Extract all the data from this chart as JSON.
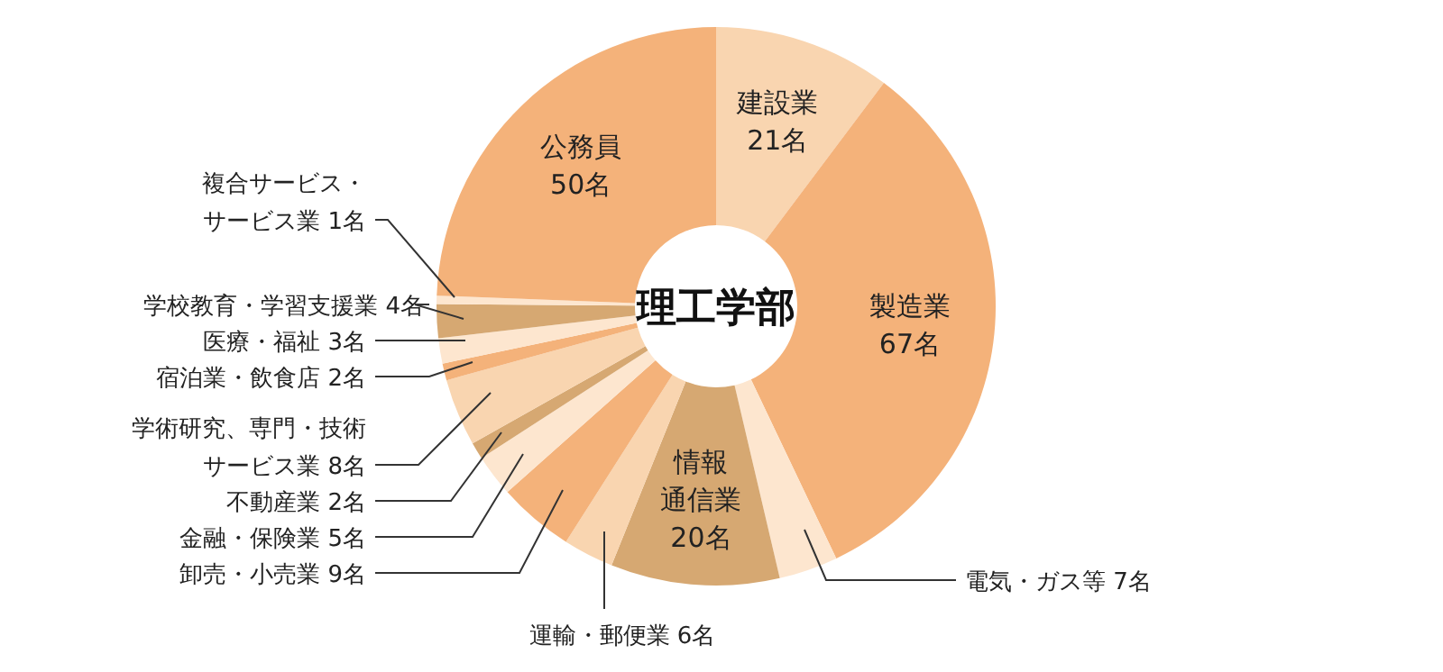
{
  "chart_data": {
    "type": "donut",
    "title": "理工学部",
    "categories": [
      "建設業",
      "製造業",
      "電気・ガス等",
      "情報通信業",
      "運輸・郵便業",
      "卸売・小売業",
      "金融・保険業",
      "不動産業",
      "学術研究、専門・技術サービス業",
      "宿泊業・飲食店",
      "医療・福祉",
      "学校教育・学習支援業",
      "複合サービス・サービス業",
      "公務員"
    ],
    "values": [
      21,
      67,
      7,
      20,
      6,
      9,
      5,
      2,
      8,
      2,
      3,
      4,
      1,
      50
    ],
    "value_labels": [
      "21名",
      "67名",
      "7名",
      "20名",
      "6名",
      "9名",
      "5名",
      "2名",
      "8名",
      "2名",
      "3名",
      "4名",
      "1名",
      "50名"
    ],
    "colors": [
      "#f9d5b0",
      "#f4b27a",
      "#fde6cf",
      "#d6a872",
      "#f9d5b0",
      "#f4b27a",
      "#fde6cf",
      "#d6a872",
      "#f9d5b0",
      "#f4b27a",
      "#fde6cf",
      "#d6a872",
      "#fde6cf",
      "#f4b27a"
    ]
  }
}
